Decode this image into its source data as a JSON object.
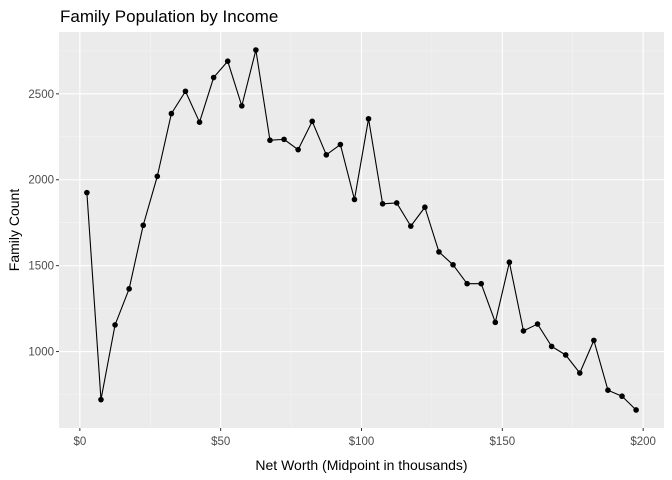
{
  "chart_data": {
    "type": "line",
    "title": "Family Population by Income",
    "xlabel": "Net Worth (Midpoint in thousands)",
    "ylabel": "Family Count",
    "xlim": [
      -7.4,
      207.4
    ],
    "ylim": [
      555,
      2860
    ],
    "x_ticks": [
      0,
      50,
      100,
      150,
      200
    ],
    "x_tick_labels": [
      "$0",
      "$50",
      "$100",
      "$150",
      "$200"
    ],
    "y_ticks": [
      1000,
      1500,
      2000,
      2500
    ],
    "y_tick_labels": [
      "1000",
      "1500",
      "2000",
      "2500"
    ],
    "grid": true,
    "legend": "none",
    "colors": {
      "panel": "#ebebeb",
      "grid_major": "#ffffff",
      "grid_minor": "#f5f5f5",
      "line": "#000000",
      "point": "#000000"
    },
    "series": [
      {
        "x": [
          2.5,
          7.5,
          12.5,
          17.5,
          22.5,
          27.5,
          32.5,
          37.5,
          42.5,
          47.5,
          52.5,
          57.5,
          62.5,
          67.5,
          72.5,
          77.5,
          82.5,
          87.5,
          92.5,
          97.5,
          102.5,
          107.5,
          112.5,
          117.5,
          122.5,
          127.5,
          132.5,
          137.5,
          142.5,
          147.5,
          152.5,
          157.5,
          162.5,
          167.5,
          172.5,
          177.5,
          182.5,
          187.5,
          192.5,
          197.5
        ],
        "values": [
          1925,
          720,
          1155,
          1365,
          1735,
          2020,
          2385,
          2515,
          2335,
          2595,
          2690,
          2430,
          2755,
          2230,
          2235,
          2175,
          2340,
          2145,
          2205,
          1885,
          2355,
          1860,
          1865,
          1730,
          1840,
          1580,
          1505,
          1395,
          1395,
          1170,
          1520,
          1120,
          1160,
          1030,
          980,
          875,
          1065,
          775,
          740,
          660
        ]
      }
    ]
  }
}
